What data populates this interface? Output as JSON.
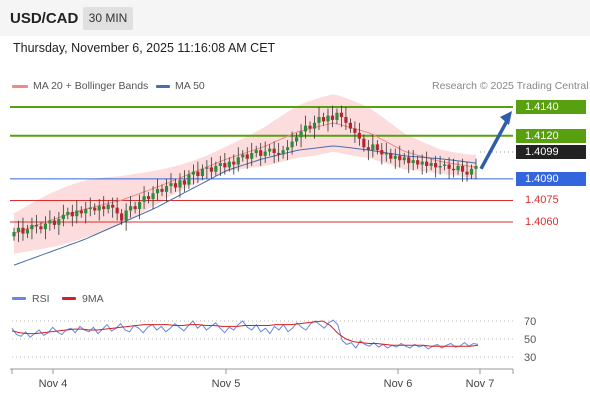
{
  "header": {
    "pair": "USD/CAD",
    "timeframe": "30 MIN"
  },
  "datetime": "Thursday, November 6, 2025 11:16:08 AM CET",
  "legend": {
    "bollinger": "MA 20 + Bollinger Bands",
    "ma50": "MA 50",
    "credit": "Research © 2025 Trading Central"
  },
  "rsi_legend": {
    "rsi": "RSI",
    "ma": "9MA"
  },
  "colors": {
    "green": "#59a010",
    "blue": "#3366dd",
    "red": "#d83030",
    "band": "#fbd0d0",
    "ma20": "#f08a8a",
    "ma50": "#4a6fa8",
    "arrow": "#2e5ea8",
    "bull": "#2f8a3a",
    "bear": "#b8232e",
    "rsi": "#6688dd",
    "rsima": "#d82020"
  },
  "chart_data": [
    {
      "type": "candlestick",
      "title": "USD/CAD 30 MIN",
      "x_ticks": [
        "Nov 4",
        "Nov 5",
        "Nov 6",
        "Nov 7"
      ],
      "y_range": [
        1.4025,
        1.4155
      ],
      "levels": [
        {
          "value": 1.414,
          "label": "1.4140",
          "kind": "resistance",
          "color": "#59a010"
        },
        {
          "value": 1.412,
          "label": "1.4120",
          "kind": "resistance",
          "color": "#59a010"
        },
        {
          "value": 1.4099,
          "label": "1.4099",
          "kind": "last price",
          "color": "#222222"
        },
        {
          "value": 1.409,
          "label": "1.4090",
          "kind": "pivot",
          "color": "#3366dd"
        },
        {
          "value": 1.4075,
          "label": "1.4075",
          "kind": "support",
          "color": "#d83030"
        },
        {
          "value": 1.406,
          "label": "1.4060",
          "kind": "support",
          "color": "#d83030"
        }
      ],
      "arrow": {
        "from": 1.4097,
        "to": 1.414,
        "direction": "up"
      },
      "series": [
        {
          "name": "Close",
          "values": [
            1.4053,
            1.4056,
            1.4052,
            1.4055,
            1.4058,
            1.4057,
            1.4055,
            1.4059,
            1.4061,
            1.4058,
            1.4062,
            1.4065,
            1.4067,
            1.4064,
            1.4068,
            1.4066,
            1.4069,
            1.407,
            1.4068,
            1.4071,
            1.4069,
            1.4072,
            1.407,
            1.4066,
            1.4061,
            1.4068,
            1.4071,
            1.4069,
            1.4074,
            1.4078,
            1.4076,
            1.408,
            1.4083,
            1.4081,
            1.4085,
            1.4087,
            1.4084,
            1.4089,
            1.4086,
            1.4093,
            1.4095,
            1.4092,
            1.4097,
            1.4098,
            1.4095,
            1.4099,
            1.4101,
            1.4098,
            1.4102,
            1.41,
            1.4105,
            1.4107,
            1.4104,
            1.4108,
            1.411,
            1.4106,
            1.4109,
            1.4111,
            1.4108,
            1.4107,
            1.411,
            1.4112,
            1.4116,
            1.4119,
            1.4123,
            1.4127,
            1.4125,
            1.4129,
            1.4133,
            1.413,
            1.4134,
            1.4131,
            1.4136,
            1.4133,
            1.4129,
            1.4125,
            1.4122,
            1.4118,
            1.4112,
            1.411,
            1.4114,
            1.411,
            1.4107,
            1.4108,
            1.4104,
            1.4106,
            1.4103,
            1.4105,
            1.4101,
            1.4103,
            1.41,
            1.4102,
            1.4099,
            1.4101,
            1.4098,
            1.4099,
            1.41,
            1.4097,
            1.4096,
            1.4099,
            1.4095,
            1.4093,
            1.4097,
            1.4099
          ]
        },
        {
          "name": "MA 50",
          "values": [
            1.403,
            1.4039,
            1.4048,
            1.4059,
            1.407,
            1.4083,
            1.4096,
            1.4104,
            1.411,
            1.4113,
            1.411,
            1.4106,
            1.4104,
            1.4101
          ]
        },
        {
          "name": "MA 20",
          "values": [
            1.4052,
            1.4061,
            1.4069,
            1.4075,
            1.4084,
            1.4094,
            1.4104,
            1.4112,
            1.4123,
            1.4129,
            1.4122,
            1.4109,
            1.4102,
            1.4098
          ]
        }
      ]
    },
    {
      "type": "line",
      "title": "RSI",
      "y_ticks": [
        70,
        50,
        30
      ],
      "y_range": [
        20,
        80
      ],
      "series": [
        {
          "name": "RSI",
          "values": [
            62,
            55,
            53,
            58,
            52,
            56,
            60,
            54,
            57,
            63,
            58,
            55,
            60,
            62,
            57,
            64,
            60,
            58,
            63,
            56,
            61,
            66,
            59,
            62,
            67,
            60,
            58,
            65,
            62,
            57,
            63,
            66,
            60,
            64,
            58,
            62,
            67,
            63,
            59,
            65,
            70,
            62,
            66,
            60,
            64,
            68,
            62,
            57,
            63,
            60,
            66,
            70,
            63,
            60,
            66,
            58,
            62,
            56,
            64,
            60,
            66,
            58,
            62,
            68,
            63,
            60,
            67,
            70,
            66,
            62,
            68,
            71,
            66,
            48,
            44,
            46,
            40,
            48,
            44,
            42,
            46,
            41,
            44,
            40,
            43,
            41,
            45,
            42,
            40,
            44,
            41,
            43,
            39,
            42,
            44,
            40,
            43,
            45,
            41,
            42,
            46,
            42,
            45,
            44
          ]
        },
        {
          "name": "9MA",
          "values": [
            59,
            57,
            56,
            56,
            57,
            58,
            59,
            60,
            61,
            61,
            60,
            60,
            61,
            62,
            63,
            64,
            65,
            66,
            66,
            66,
            66,
            65,
            65,
            66,
            66,
            65,
            65,
            64,
            64,
            64,
            65,
            65,
            65,
            65,
            66,
            66,
            66,
            67,
            68,
            69,
            70,
            65,
            56,
            50,
            47,
            46,
            45,
            45,
            44,
            43,
            43,
            43,
            43,
            43,
            42,
            42,
            42,
            42,
            42,
            42,
            43
          ]
        }
      ]
    }
  ]
}
